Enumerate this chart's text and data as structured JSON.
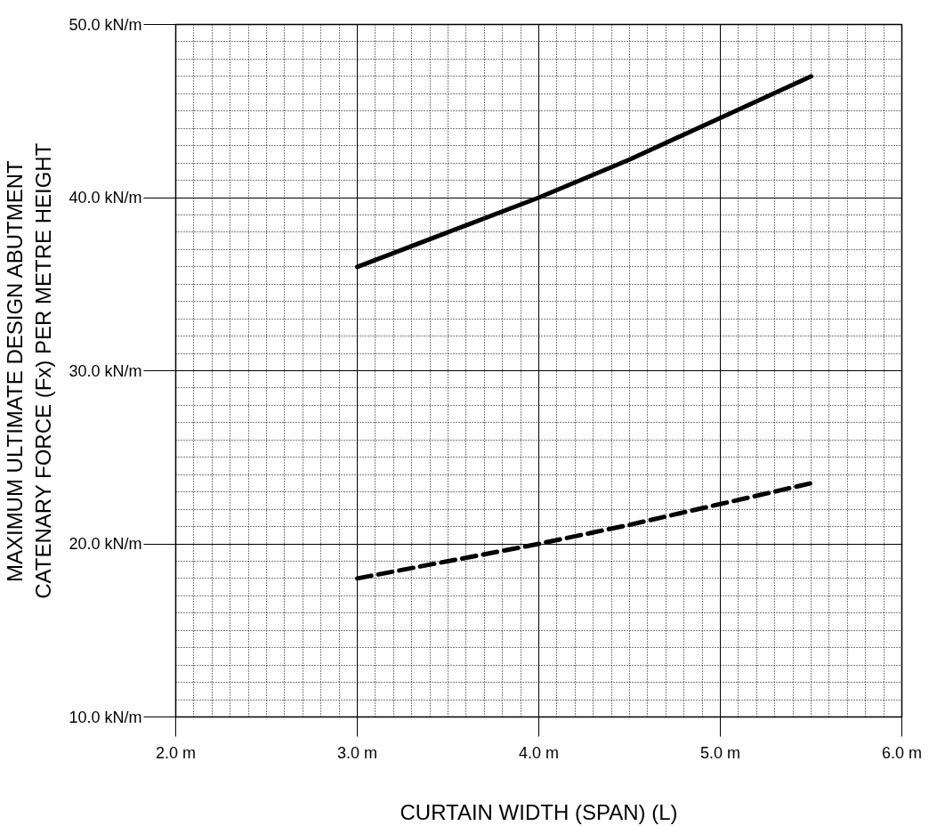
{
  "chart_data": {
    "type": "line",
    "xlabel": "CURTAIN WIDTH (SPAN) (L)",
    "ylabel": "MAXIMUM ULTIMATE DESIGN ABUTMENT\nCATENARY FORCE (Fx) PER METRE HEIGHT",
    "x": [
      3.0,
      3.5,
      4.0,
      4.5,
      5.0,
      5.5
    ],
    "series": [
      {
        "color": "#000000",
        "line_style": "solid",
        "values": [
          36,
          38,
          40,
          42.2,
          44.6,
          47
        ]
      },
      {
        "color": "#000000",
        "line_style": "dashed",
        "values": [
          18,
          19,
          20,
          21.1,
          22.3,
          23.5
        ]
      }
    ],
    "xlim": [
      2,
      6
    ],
    "ylim": [
      10,
      50
    ],
    "xticks": [
      {
        "value": 2,
        "label": "2.0 m"
      },
      {
        "value": 3,
        "label": "3.0 m"
      },
      {
        "value": 4,
        "label": "4.0 m"
      },
      {
        "value": 5,
        "label": "5.0 m"
      },
      {
        "value": 6,
        "label": "6.0 m"
      }
    ],
    "yticks": [
      {
        "value": 10,
        "label": "10.0 kN/m"
      },
      {
        "value": 20,
        "label": "20.0 kN/m"
      },
      {
        "value": 30,
        "label": "30.0 kN/m"
      },
      {
        "value": 40,
        "label": "40.0 kN/m"
      },
      {
        "value": 50,
        "label": "50.0 kN/m"
      }
    ],
    "grid": true,
    "marker": "none"
  }
}
